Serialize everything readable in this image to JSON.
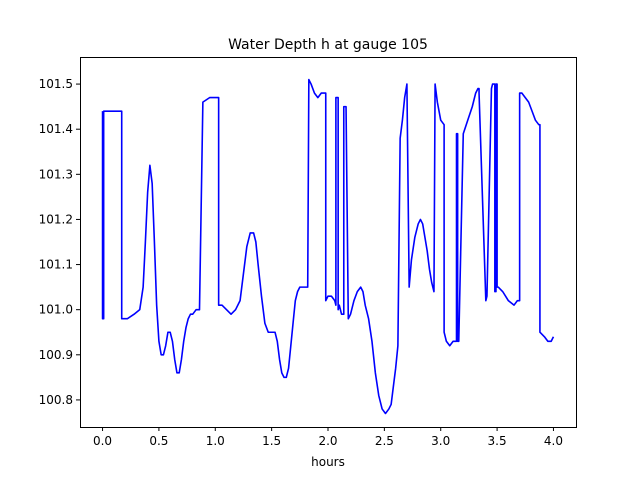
{
  "chart_data": {
    "type": "line",
    "title": "Water Depth h at gauge 105",
    "xlabel": "hours",
    "ylabel": "",
    "xlim": [
      -0.2,
      4.2
    ],
    "ylim": [
      100.74,
      101.56
    ],
    "xticks": [
      0.0,
      0.5,
      1.0,
      1.5,
      2.0,
      2.5,
      3.0,
      3.5,
      4.0
    ],
    "xtick_labels": [
      "0.0",
      "0.5",
      "1.0",
      "1.5",
      "2.0",
      "2.5",
      "3.0",
      "3.5",
      "4.0"
    ],
    "yticks": [
      100.8,
      100.9,
      101.0,
      101.1,
      101.2,
      101.3,
      101.4,
      101.5
    ],
    "ytick_labels": [
      "100.8",
      "100.9",
      "101.0",
      "101.1",
      "101.2",
      "101.3",
      "101.4",
      "101.5"
    ],
    "grid": false,
    "series": [
      {
        "color": "#0000ff",
        "x": [
          0.0,
          0.0,
          0.01,
          0.01,
          0.02,
          0.02,
          0.17,
          0.17,
          0.22,
          0.28,
          0.33,
          0.36,
          0.38,
          0.4,
          0.42,
          0.44,
          0.46,
          0.48,
          0.5,
          0.52,
          0.54,
          0.56,
          0.58,
          0.6,
          0.62,
          0.64,
          0.66,
          0.68,
          0.7,
          0.72,
          0.74,
          0.76,
          0.78,
          0.8,
          0.83,
          0.86,
          0.89,
          0.89,
          0.95,
          1.0,
          1.02,
          1.03,
          1.03,
          1.06,
          1.1,
          1.14,
          1.18,
          1.22,
          1.25,
          1.28,
          1.31,
          1.34,
          1.36,
          1.38,
          1.41,
          1.44,
          1.47,
          1.5,
          1.53,
          1.55,
          1.57,
          1.59,
          1.61,
          1.63,
          1.65,
          1.67,
          1.69,
          1.71,
          1.73,
          1.75,
          1.77,
          1.79,
          1.8,
          1.82,
          1.83,
          1.83,
          1.85,
          1.88,
          1.91,
          1.94,
          1.96,
          1.98,
          1.98,
          2.0,
          2.03,
          2.06,
          2.07,
          2.07,
          2.09,
          2.09,
          2.1,
          2.12,
          2.14,
          2.14,
          2.16,
          2.18,
          2.2,
          2.23,
          2.26,
          2.29,
          2.31,
          2.33,
          2.36,
          2.39,
          2.42,
          2.45,
          2.48,
          2.51,
          2.54,
          2.56,
          2.58,
          2.6,
          2.62,
          2.64,
          2.66,
          2.68,
          2.7,
          2.7,
          2.72,
          2.72,
          2.74,
          2.77,
          2.8,
          2.82,
          2.84,
          2.86,
          2.88,
          2.9,
          2.92,
          2.94,
          2.95,
          2.95,
          2.97,
          3.0,
          3.03,
          3.03,
          3.05,
          3.08,
          3.11,
          3.13,
          3.14,
          3.14,
          3.15,
          3.15,
          3.16,
          3.2,
          3.24,
          3.28,
          3.31,
          3.33,
          3.34,
          3.34,
          3.4,
          3.41,
          3.41,
          3.45,
          3.46,
          3.46,
          3.48,
          3.48,
          3.49,
          3.49,
          3.5,
          3.5,
          3.51,
          3.51,
          3.55,
          3.6,
          3.65,
          3.68,
          3.7,
          3.7,
          3.72,
          3.75,
          3.78,
          3.81,
          3.84,
          3.87,
          3.88,
          3.88,
          3.92,
          3.95,
          3.98,
          4.0
        ],
        "y": [
          101.44,
          100.98,
          100.98,
          101.44,
          101.44,
          101.44,
          101.44,
          100.98,
          100.98,
          100.99,
          101.0,
          101.05,
          101.15,
          101.26,
          101.32,
          101.28,
          101.15,
          101.01,
          100.93,
          100.9,
          100.9,
          100.92,
          100.95,
          100.95,
          100.93,
          100.89,
          100.86,
          100.86,
          100.89,
          100.93,
          100.96,
          100.98,
          100.99,
          100.99,
          101.0,
          101.0,
          101.46,
          101.46,
          101.47,
          101.47,
          101.47,
          101.47,
          101.01,
          101.01,
          101.0,
          100.99,
          101.0,
          101.02,
          101.08,
          101.14,
          101.17,
          101.17,
          101.15,
          101.1,
          101.03,
          100.97,
          100.95,
          100.95,
          100.95,
          100.93,
          100.89,
          100.86,
          100.85,
          100.85,
          100.87,
          100.92,
          100.97,
          101.02,
          101.04,
          101.05,
          101.05,
          101.05,
          101.05,
          101.05,
          101.51,
          101.51,
          101.5,
          101.48,
          101.47,
          101.48,
          101.48,
          101.48,
          101.02,
          101.03,
          101.03,
          101.02,
          101.01,
          101.47,
          101.47,
          101.0,
          101.01,
          100.99,
          100.99,
          101.45,
          101.45,
          100.98,
          100.99,
          101.02,
          101.04,
          101.05,
          101.04,
          101.01,
          100.98,
          100.93,
          100.86,
          100.81,
          100.78,
          100.77,
          100.78,
          100.79,
          100.83,
          100.87,
          100.92,
          101.38,
          101.42,
          101.47,
          101.5,
          101.5,
          101.05,
          101.05,
          101.11,
          101.16,
          101.19,
          101.2,
          101.19,
          101.16,
          101.13,
          101.09,
          101.06,
          101.04,
          101.5,
          101.5,
          101.46,
          101.42,
          101.41,
          100.95,
          100.93,
          100.92,
          100.93,
          100.93,
          100.93,
          101.39,
          101.39,
          100.93,
          100.93,
          101.39,
          101.42,
          101.45,
          101.48,
          101.49,
          101.49,
          101.48,
          101.02,
          101.03,
          101.03,
          101.49,
          101.5,
          101.5,
          101.5,
          101.04,
          101.04,
          101.5,
          101.5,
          101.05,
          101.05,
          101.05,
          101.04,
          101.02,
          101.01,
          101.02,
          101.02,
          101.48,
          101.48,
          101.47,
          101.46,
          101.44,
          101.42,
          101.41,
          101.41,
          100.95,
          100.94,
          100.93,
          100.93,
          100.94
        ]
      }
    ]
  }
}
